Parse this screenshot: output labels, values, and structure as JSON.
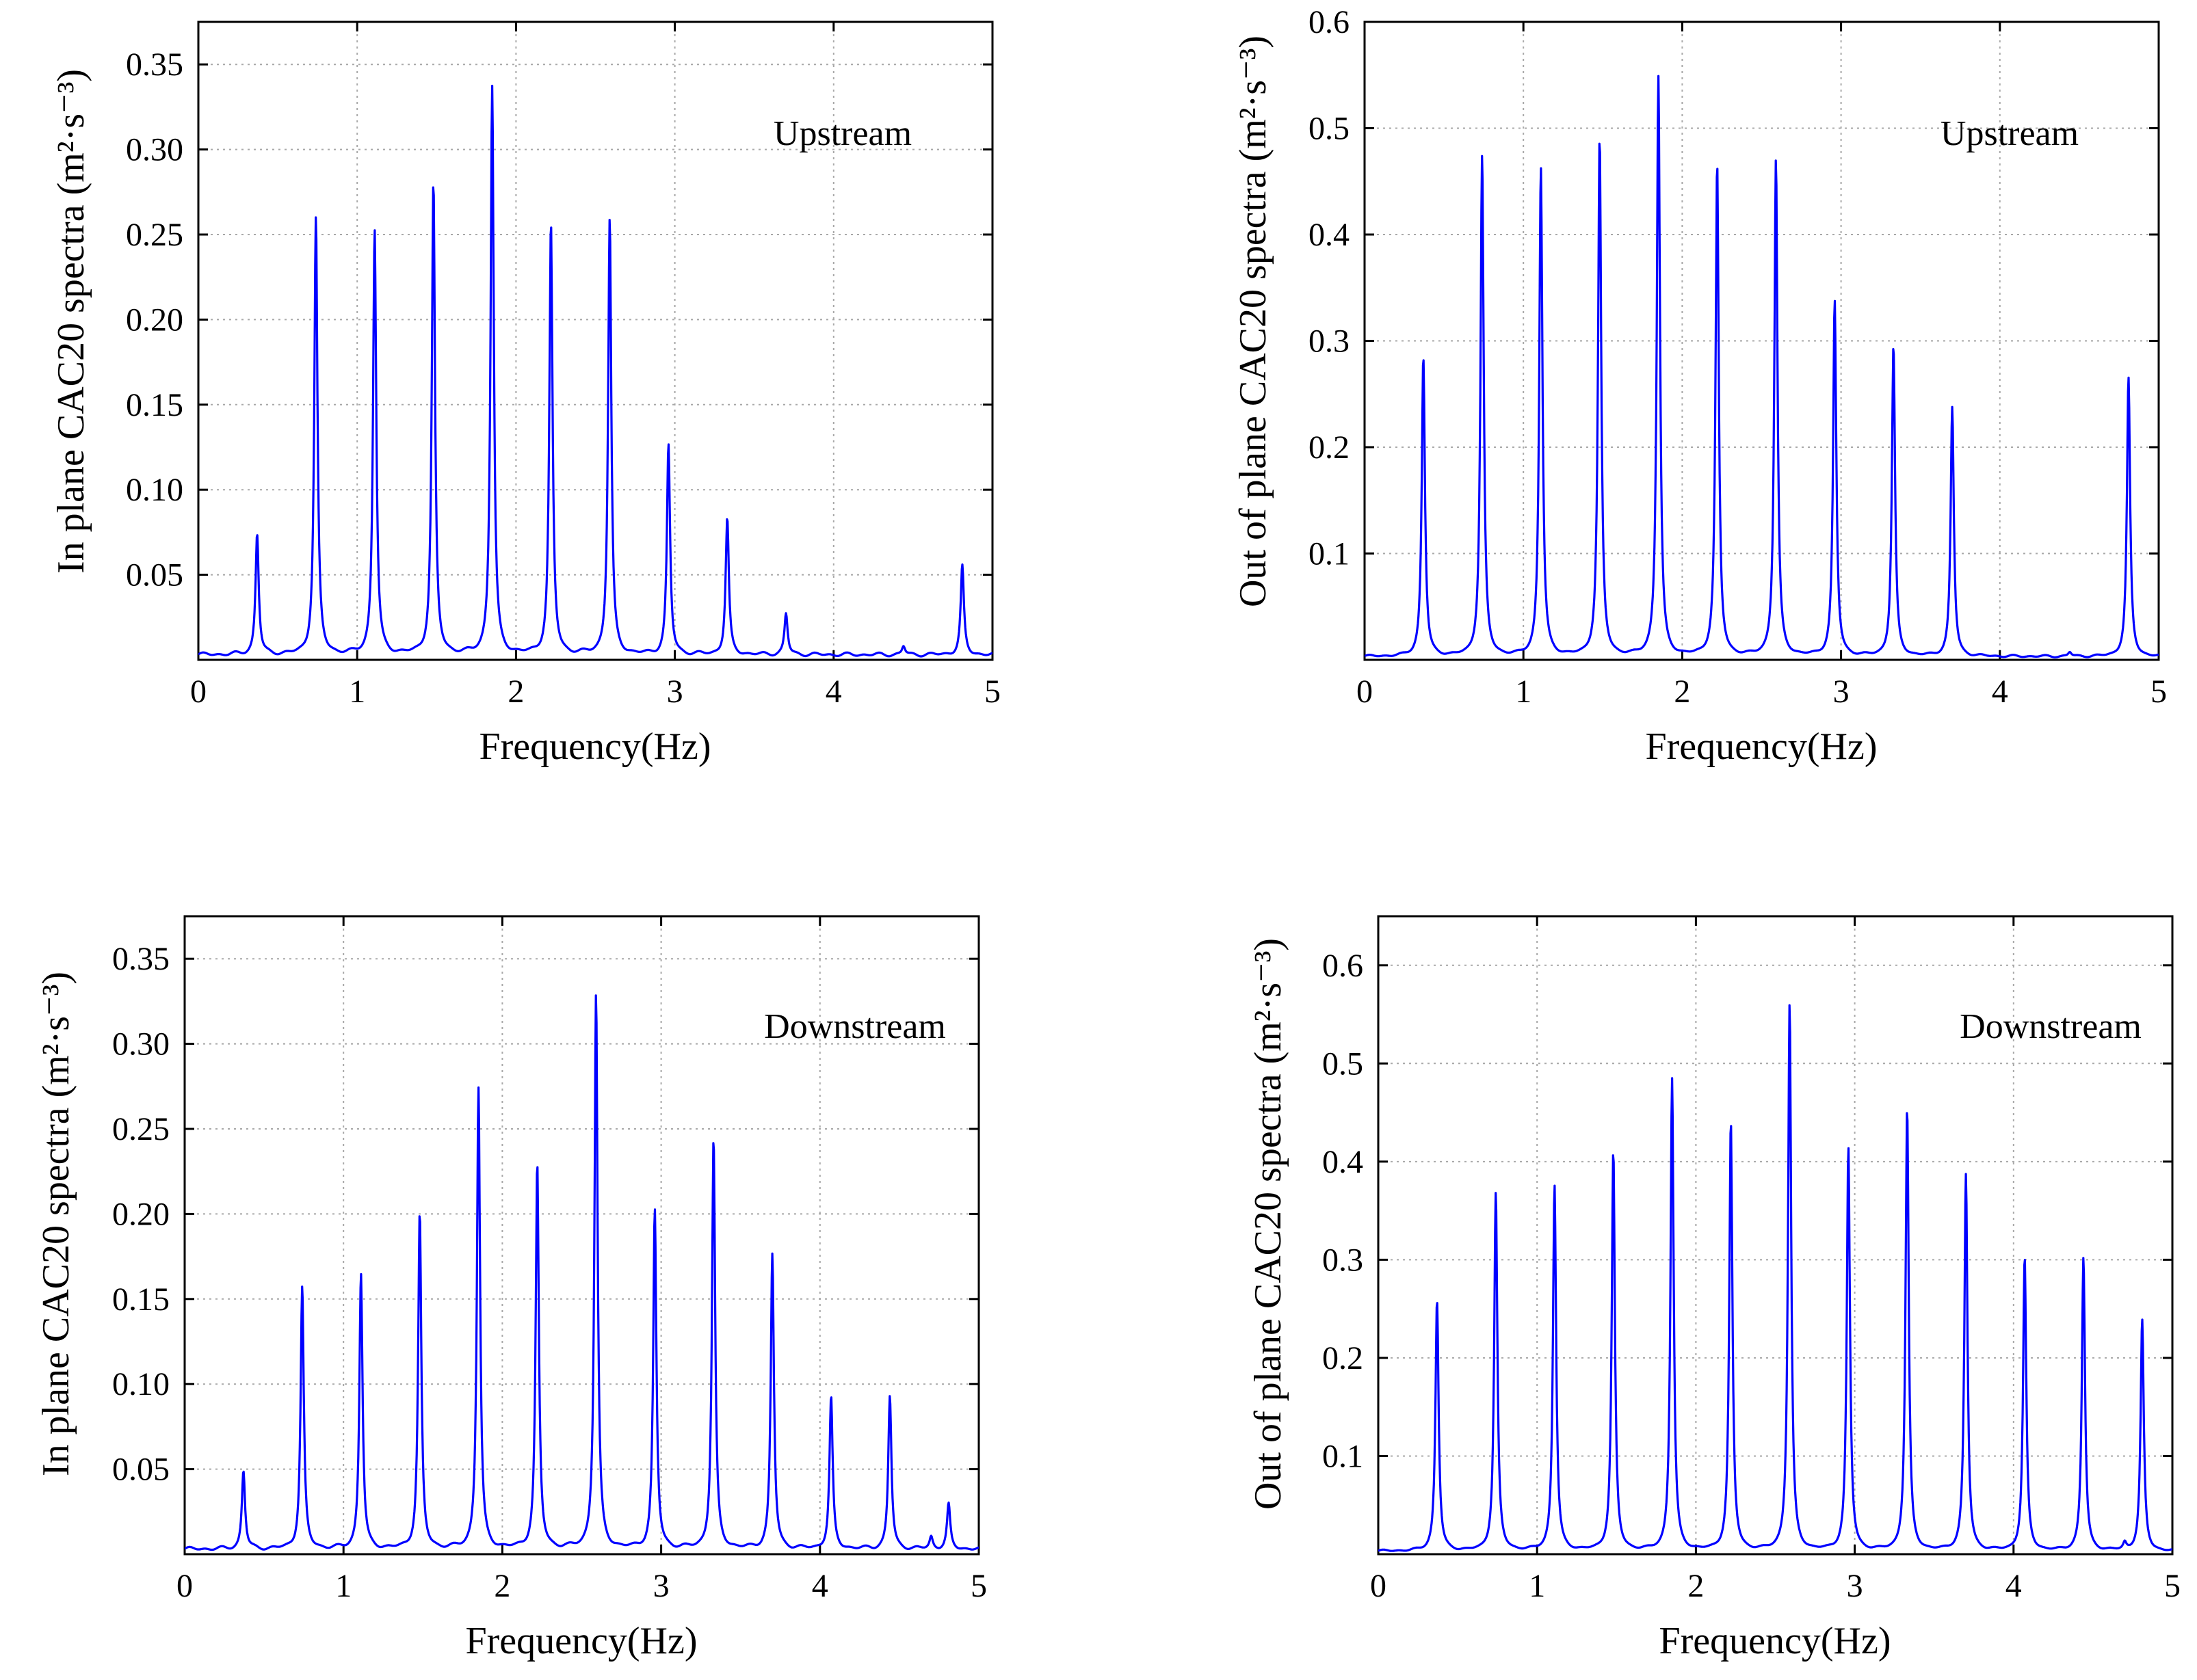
{
  "chart_data": [
    {
      "type": "line",
      "annotation": "Upstream",
      "xlabel": "Frequency(Hz)",
      "ylabel": "In plane CAC20 spectra (m²·s⁻³)",
      "xlim": [
        0,
        5
      ],
      "ylim": [
        0,
        0.375
      ],
      "xticks": [
        0,
        1,
        2,
        3,
        4,
        5
      ],
      "xtick_labels": [
        "0",
        "1",
        "2",
        "3",
        "4",
        "5"
      ],
      "yticks": [
        0.05,
        0.1,
        0.15,
        0.2,
        0.25,
        0.3,
        0.35
      ],
      "ytick_labels": [
        "0.05",
        "0.10",
        "0.15",
        "0.20",
        "0.25",
        "0.30",
        "0.35"
      ],
      "grid": true,
      "color": "#0000ff",
      "baseline": 0.003,
      "peaks": [
        {
          "x": 0.37,
          "y": 0.074
        },
        {
          "x": 0.74,
          "y": 0.26
        },
        {
          "x": 1.11,
          "y": 0.253
        },
        {
          "x": 1.48,
          "y": 0.28
        },
        {
          "x": 1.85,
          "y": 0.337
        },
        {
          "x": 2.22,
          "y": 0.256
        },
        {
          "x": 2.59,
          "y": 0.259
        },
        {
          "x": 2.96,
          "y": 0.126
        },
        {
          "x": 3.33,
          "y": 0.083
        },
        {
          "x": 3.7,
          "y": 0.027
        },
        {
          "x": 4.44,
          "y": 0.008
        },
        {
          "x": 4.81,
          "y": 0.055
        }
      ]
    },
    {
      "type": "line",
      "annotation": "Upstream",
      "xlabel": "Frequency(Hz)",
      "ylabel": "Out of plane CAC20 spectra (m²·s⁻³)",
      "xlim": [
        0,
        5
      ],
      "ylim": [
        0,
        0.6
      ],
      "xticks": [
        0,
        1,
        2,
        3,
        4,
        5
      ],
      "xtick_labels": [
        "0",
        "1",
        "2",
        "3",
        "4",
        "5"
      ],
      "yticks": [
        0.1,
        0.2,
        0.3,
        0.4,
        0.5,
        0.6
      ],
      "ytick_labels": [
        "0.1",
        "0.2",
        "0.3",
        "0.4",
        "0.5",
        "0.6"
      ],
      "grid": true,
      "color": "#0000ff",
      "baseline": 0.003,
      "peaks": [
        {
          "x": 0.37,
          "y": 0.285
        },
        {
          "x": 0.74,
          "y": 0.474
        },
        {
          "x": 1.11,
          "y": 0.463
        },
        {
          "x": 1.48,
          "y": 0.49
        },
        {
          "x": 1.85,
          "y": 0.548
        },
        {
          "x": 2.22,
          "y": 0.466
        },
        {
          "x": 2.59,
          "y": 0.47
        },
        {
          "x": 2.96,
          "y": 0.337
        },
        {
          "x": 3.33,
          "y": 0.295
        },
        {
          "x": 3.7,
          "y": 0.237
        },
        {
          "x": 4.44,
          "y": 0.007
        },
        {
          "x": 4.81,
          "y": 0.265
        }
      ]
    },
    {
      "type": "line",
      "annotation": "Downstream",
      "xlabel": "Frequency(Hz)",
      "ylabel": "In plane CAC20 spectra (m²·s⁻³)",
      "xlim": [
        0,
        5
      ],
      "ylim": [
        0,
        0.375
      ],
      "xticks": [
        0,
        1,
        2,
        3,
        4,
        5
      ],
      "xtick_labels": [
        "0",
        "1",
        "2",
        "3",
        "4",
        "5"
      ],
      "yticks": [
        0.05,
        0.1,
        0.15,
        0.2,
        0.25,
        0.3,
        0.35
      ],
      "ytick_labels": [
        "0.05",
        "0.10",
        "0.15",
        "0.20",
        "0.25",
        "0.30",
        "0.35"
      ],
      "grid": true,
      "color": "#0000ff",
      "baseline": 0.003,
      "peaks": [
        {
          "x": 0.37,
          "y": 0.049
        },
        {
          "x": 0.74,
          "y": 0.157
        },
        {
          "x": 1.11,
          "y": 0.165
        },
        {
          "x": 1.48,
          "y": 0.2
        },
        {
          "x": 1.85,
          "y": 0.274
        },
        {
          "x": 2.22,
          "y": 0.229
        },
        {
          "x": 2.59,
          "y": 0.329
        },
        {
          "x": 2.96,
          "y": 0.202
        },
        {
          "x": 3.33,
          "y": 0.244
        },
        {
          "x": 3.7,
          "y": 0.176
        },
        {
          "x": 4.07,
          "y": 0.092
        },
        {
          "x": 4.44,
          "y": 0.093
        },
        {
          "x": 4.7,
          "y": 0.01
        },
        {
          "x": 4.81,
          "y": 0.029
        }
      ]
    },
    {
      "type": "line",
      "annotation": "Downstream",
      "xlabel": "Frequency(Hz)",
      "ylabel": "Out of plane CAC20 spectra (m²·s⁻³)",
      "xlim": [
        0,
        5
      ],
      "ylim": [
        0,
        0.65
      ],
      "xticks": [
        0,
        1,
        2,
        3,
        4,
        5
      ],
      "xtick_labels": [
        "0",
        "1",
        "2",
        "3",
        "4",
        "5"
      ],
      "yticks": [
        0.1,
        0.2,
        0.3,
        0.4,
        0.5,
        0.6
      ],
      "ytick_labels": [
        "0.1",
        "0.2",
        "0.3",
        "0.4",
        "0.5",
        "0.6"
      ],
      "grid": true,
      "color": "#0000ff",
      "baseline": 0.003,
      "peaks": [
        {
          "x": 0.37,
          "y": 0.259
        },
        {
          "x": 0.74,
          "y": 0.368
        },
        {
          "x": 1.11,
          "y": 0.376
        },
        {
          "x": 1.48,
          "y": 0.41
        },
        {
          "x": 1.85,
          "y": 0.484
        },
        {
          "x": 2.22,
          "y": 0.44
        },
        {
          "x": 2.59,
          "y": 0.56
        },
        {
          "x": 2.96,
          "y": 0.413
        },
        {
          "x": 3.33,
          "y": 0.454
        },
        {
          "x": 3.7,
          "y": 0.386
        },
        {
          "x": 4.07,
          "y": 0.302
        },
        {
          "x": 4.44,
          "y": 0.302
        },
        {
          "x": 4.7,
          "y": 0.01
        },
        {
          "x": 4.81,
          "y": 0.238
        }
      ]
    }
  ]
}
